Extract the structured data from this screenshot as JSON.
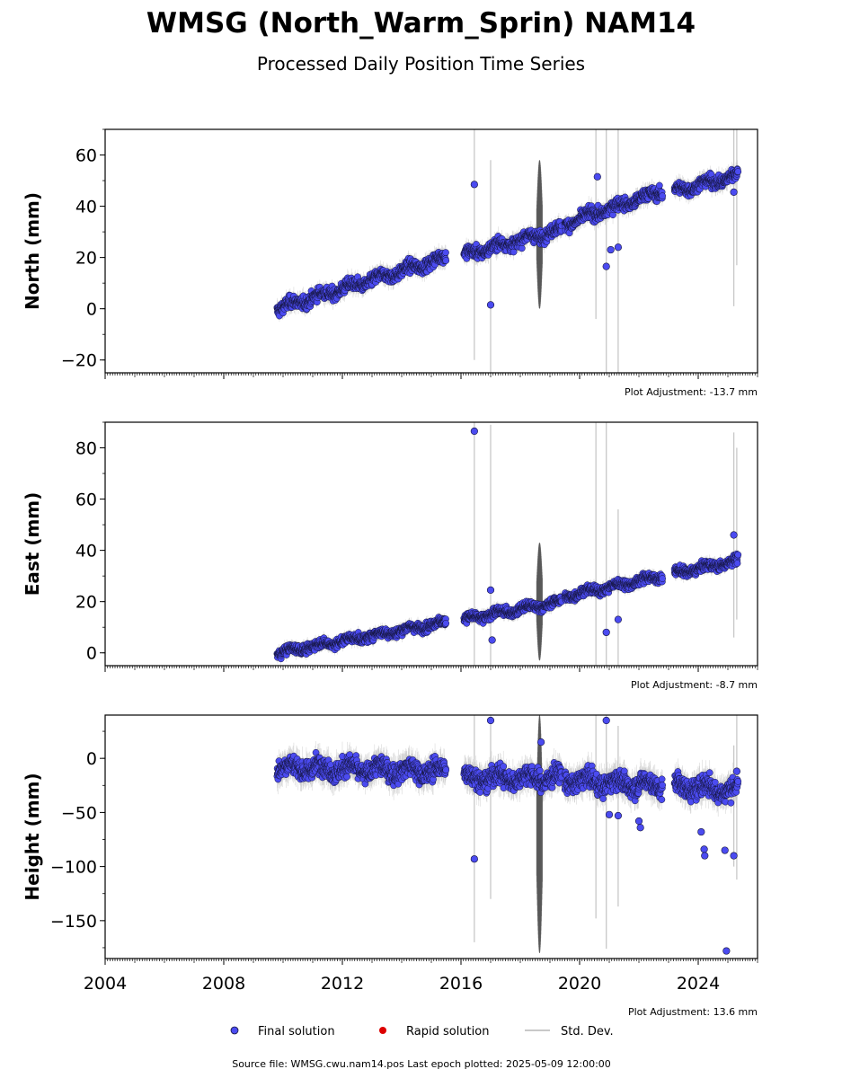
{
  "title": "WMSG (North_Warm_Sprin) NAM14",
  "subtitle": "Processed Daily Position Time Series",
  "colors": {
    "final": "#4b4bf0",
    "final_edge": "#14143c",
    "rapid": "#dd0000",
    "stddev": "#c8c8c8",
    "stddev_dense": "#555555"
  },
  "chart_data": [
    {
      "type": "scatter",
      "ylabel": "North (mm)",
      "ylim": [
        -25,
        70
      ],
      "yticks": [
        -20,
        0,
        20,
        40,
        60
      ],
      "ytick_labels": [
        "−20",
        "0",
        "20",
        "40",
        "60"
      ],
      "xlim": [
        2004,
        2026
      ],
      "adjustment": "Plot Adjustment: -13.7 mm",
      "segments": [
        {
          "start": 2009.8,
          "end": 2015.5,
          "y0": 0,
          "y1": 20
        },
        {
          "start": 2016.1,
          "end": 2019.4,
          "y0": 21,
          "y1": 31
        },
        {
          "start": 2019.5,
          "end": 2022.8,
          "y0": 33,
          "y1": 46
        },
        {
          "start": 2023.2,
          "end": 2025.35,
          "y0": 46,
          "y1": 52
        }
      ],
      "outliers": [
        [
          2016.45,
          48.5
        ],
        [
          2017.0,
          1.5
        ],
        [
          2020.6,
          51.5
        ],
        [
          2020.9,
          16.5
        ],
        [
          2021.05,
          23
        ],
        [
          2021.3,
          24
        ],
        [
          2025.2,
          45.5
        ]
      ],
      "tall_errorbars": [
        [
          2016.45,
          -20,
          70
        ],
        [
          2017.0,
          -25,
          58
        ],
        [
          2020.55,
          -4,
          70
        ],
        [
          2020.9,
          -25,
          70
        ],
        [
          2021.3,
          -25,
          70
        ],
        [
          2025.2,
          1,
          70
        ],
        [
          2025.3,
          17,
          70
        ]
      ],
      "dense_band": {
        "start": 2018.55,
        "end": 2018.75,
        "ymin": 0,
        "ymax": 58
      },
      "noise": 2.2
    },
    {
      "type": "scatter",
      "ylabel": "East (mm)",
      "ylim": [
        -5,
        90
      ],
      "yticks": [
        0,
        20,
        40,
        60,
        80
      ],
      "ytick_labels": [
        "0",
        "20",
        "40",
        "60",
        "80"
      ],
      "xlim": [
        2004,
        2026
      ],
      "adjustment": "Plot Adjustment: -8.7 mm",
      "segments": [
        {
          "start": 2009.8,
          "end": 2015.5,
          "y0": 0,
          "y1": 12
        },
        {
          "start": 2016.1,
          "end": 2019.4,
          "y0": 13,
          "y1": 20
        },
        {
          "start": 2019.5,
          "end": 2022.8,
          "y0": 22,
          "y1": 30
        },
        {
          "start": 2023.2,
          "end": 2025.35,
          "y0": 31,
          "y1": 36
        }
      ],
      "outliers": [
        [
          2016.45,
          86.5
        ],
        [
          2017.0,
          24.5
        ],
        [
          2017.05,
          5
        ],
        [
          2020.9,
          8
        ],
        [
          2021.3,
          13
        ],
        [
          2025.2,
          46
        ]
      ],
      "tall_errorbars": [
        [
          2016.45,
          -5,
          90
        ],
        [
          2017.0,
          -5,
          89
        ],
        [
          2020.55,
          -5,
          90
        ],
        [
          2020.9,
          -5,
          90
        ],
        [
          2021.3,
          -5,
          56
        ],
        [
          2025.2,
          6,
          86
        ],
        [
          2025.3,
          13,
          80
        ]
      ],
      "dense_band": {
        "start": 2018.55,
        "end": 2018.75,
        "ymin": -3,
        "ymax": 43
      },
      "noise": 1.6
    },
    {
      "type": "scatter",
      "ylabel": "Height (mm)",
      "ylim": [
        -185,
        40
      ],
      "yticks": [
        -150,
        -100,
        -50,
        0
      ],
      "ytick_labels": [
        "−150",
        "−100",
        "−50",
        "0"
      ],
      "xlim": [
        2004,
        2026
      ],
      "xticks": [
        2004,
        2008,
        2012,
        2016,
        2020,
        2024
      ],
      "xtick_labels": [
        "2004",
        "2008",
        "2012",
        "2016",
        "2020",
        "2024"
      ],
      "adjustment": "Plot Adjustment: 13.6 mm",
      "segments": [
        {
          "start": 2009.8,
          "end": 2015.5,
          "y0": -8,
          "y1": -12
        },
        {
          "start": 2016.1,
          "end": 2019.4,
          "y0": -18,
          "y1": -18
        },
        {
          "start": 2019.5,
          "end": 2022.8,
          "y0": -20,
          "y1": -25
        },
        {
          "start": 2023.2,
          "end": 2025.35,
          "y0": -25,
          "y1": -30
        }
      ],
      "outliers": [
        [
          2016.45,
          -93
        ],
        [
          2017.0,
          35
        ],
        [
          2018.7,
          15
        ],
        [
          2020.9,
          35
        ],
        [
          2021.0,
          -52
        ],
        [
          2021.3,
          -53
        ],
        [
          2022.0,
          -58
        ],
        [
          2022.05,
          -64
        ],
        [
          2024.1,
          -68
        ],
        [
          2024.2,
          -84
        ],
        [
          2024.22,
          -90
        ],
        [
          2024.9,
          -85
        ],
        [
          2024.95,
          -178
        ],
        [
          2025.2,
          -90
        ],
        [
          2025.3,
          -12
        ]
      ],
      "tall_errorbars": [
        [
          2016.45,
          -170,
          40
        ],
        [
          2017.0,
          -130,
          40
        ],
        [
          2020.55,
          -148,
          40
        ],
        [
          2020.9,
          -176,
          40
        ],
        [
          2021.3,
          -137,
          30
        ],
        [
          2025.2,
          -100,
          12
        ],
        [
          2025.3,
          -112,
          40
        ]
      ],
      "dense_band": {
        "start": 2018.55,
        "end": 2018.75,
        "ymin": -180,
        "ymax": 40
      },
      "noise": 8.5
    }
  ],
  "legend": {
    "final": "Final solution",
    "rapid": "Rapid solution",
    "stddev": "Std. Dev."
  },
  "footer": "Source file: WMSG.cwu.nam14.pos  Last epoch plotted: 2025-05-09 12:00:00"
}
